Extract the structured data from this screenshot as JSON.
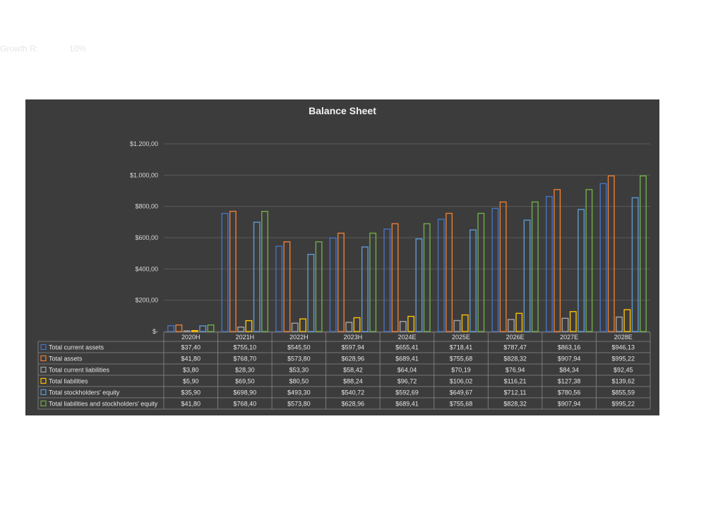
{
  "header": {
    "growth_label": "Growth R:",
    "growth_value": "10%"
  },
  "colors": {
    "background": "#3c3c3c",
    "grid": "#5a5a5a"
  },
  "chart_data": {
    "type": "bar",
    "title": "Balance Sheet",
    "categories": [
      "2020H",
      "2021H",
      "2022H",
      "2023H",
      "2024E",
      "2025E",
      "2026E",
      "2027E",
      "2028E"
    ],
    "ylim": [
      0,
      1200
    ],
    "yticks": [
      0,
      200,
      400,
      600,
      800,
      1000,
      1200
    ],
    "ytick_labels": [
      "$-",
      "$200,00",
      "$400,00",
      "$600,00",
      "$800,00",
      "$1.000,00",
      "$1.200,00"
    ],
    "grid": true,
    "legend": "table-bottom",
    "series": [
      {
        "name": "Total current assets",
        "color": "#4472c4",
        "values": [
          37.4,
          755.1,
          545.5,
          597.94,
          655.41,
          718.41,
          787.47,
          863.16,
          946.13
        ],
        "labels": [
          "$37,40",
          "$755,10",
          "$545,50",
          "$597,94",
          "$655,41",
          "$718,41",
          "$787,47",
          "$863,16",
          "$946,13"
        ]
      },
      {
        "name": "Total assets",
        "color": "#ed7d31",
        "values": [
          41.8,
          768.7,
          573.8,
          628.96,
          689.41,
          755.68,
          828.32,
          907.94,
          995.22
        ],
        "labels": [
          "$41,80",
          "$768,70",
          "$573,80",
          "$628,96",
          "$689,41",
          "$755,68",
          "$828,32",
          "$907,94",
          "$995,22"
        ]
      },
      {
        "name": "Total current liabilities",
        "color": "#a5a5a5",
        "values": [
          3.8,
          28.3,
          53.3,
          58.42,
          64.04,
          70.19,
          76.94,
          84.34,
          92.45
        ],
        "labels": [
          "$3,80",
          "$28,30",
          "$53,30",
          "$58,42",
          "$64,04",
          "$70,19",
          "$76,94",
          "$84,34",
          "$92,45"
        ]
      },
      {
        "name": "Total liabilities",
        "color": "#ffc000",
        "values": [
          5.9,
          69.5,
          80.5,
          88.24,
          96.72,
          106.02,
          116.21,
          127.38,
          139.62
        ],
        "labels": [
          "$5,90",
          "$69,50",
          "$80,50",
          "$88,24",
          "$96,72",
          "$106,02",
          "$116,21",
          "$127,38",
          "$139,62"
        ]
      },
      {
        "name": "Total stockholders' equity",
        "color": "#5b9bd5",
        "values": [
          35.9,
          698.9,
          493.3,
          540.72,
          592.69,
          649.67,
          712.11,
          780.56,
          855.59
        ],
        "labels": [
          "$35,90",
          "$698,90",
          "$493,30",
          "$540,72",
          "$592,69",
          "$649,67",
          "$712,11",
          "$780,56",
          "$855,59"
        ]
      },
      {
        "name": "Total liabilities and stockholders' equity",
        "color": "#70ad47",
        "values": [
          41.8,
          768.4,
          573.8,
          628.96,
          689.41,
          755.68,
          828.32,
          907.94,
          995.22
        ],
        "labels": [
          "$41,80",
          "$768,40",
          "$573,80",
          "$628,96",
          "$689,41",
          "$755,68",
          "$828,32",
          "$907,94",
          "$995,22"
        ]
      }
    ]
  }
}
